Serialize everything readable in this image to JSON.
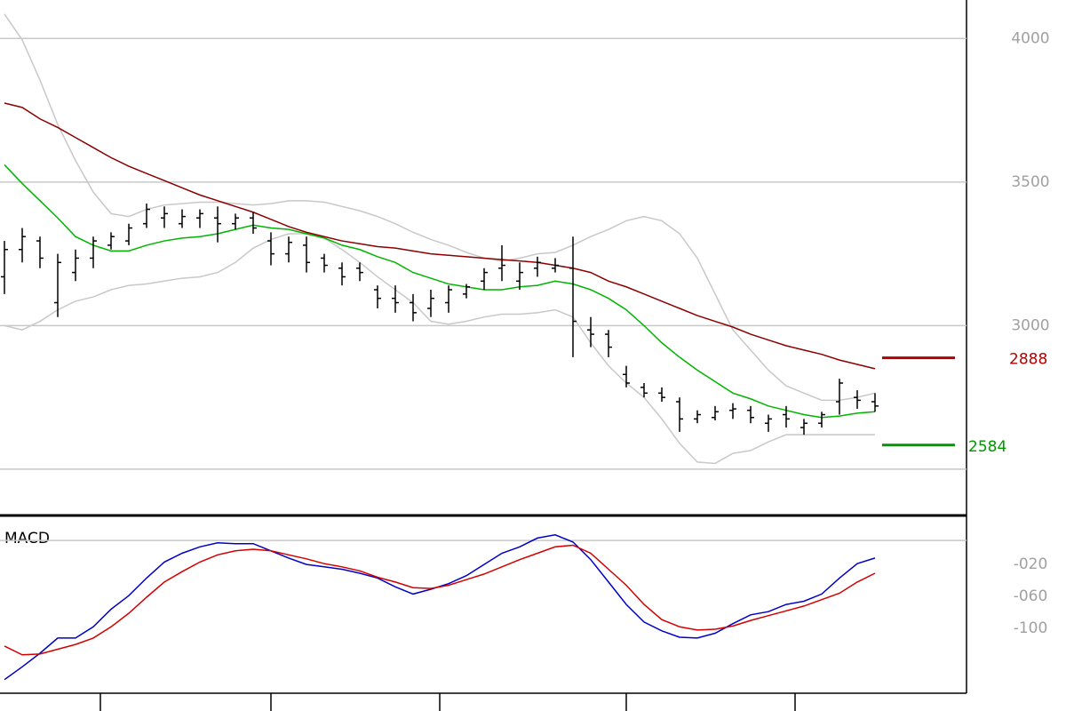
{
  "chart_data": [
    {
      "type": "ohlc",
      "open": [
        3170,
        3265,
        3295,
        3080,
        3185,
        3235,
        3280,
        3295,
        3355,
        3375,
        3355,
        3375,
        3375,
        3355,
        3375,
        3295,
        3250,
        3280,
        3235,
        3200,
        3200,
        3125,
        3095,
        3080,
        3060,
        3080,
        3110,
        3155,
        3200,
        3155,
        3200,
        3200,
        3200,
        2985,
        2970,
        2830,
        2785,
        2765,
        2735,
        2675,
        2680,
        2705,
        2705,
        2660,
        2690,
        2645,
        2660,
        2735,
        2750,
        2735
      ],
      "high": [
        3295,
        3340,
        3310,
        3250,
        3265,
        3310,
        3325,
        3355,
        3425,
        3415,
        3405,
        3405,
        3415,
        3390,
        3395,
        3325,
        3310,
        3310,
        3250,
        3220,
        3220,
        3140,
        3140,
        3110,
        3125,
        3140,
        3145,
        3200,
        3280,
        3220,
        3240,
        3235,
        3310,
        3030,
        2985,
        2860,
        2800,
        2785,
        2750,
        2705,
        2720,
        2730,
        2720,
        2690,
        2720,
        2675,
        2700,
        2815,
        2775,
        2765
      ],
      "low": [
        3110,
        3220,
        3200,
        3030,
        3155,
        3200,
        3265,
        3280,
        3340,
        3340,
        3340,
        3340,
        3290,
        3335,
        3320,
        3210,
        3220,
        3185,
        3185,
        3140,
        3155,
        3060,
        3045,
        3015,
        3030,
        3045,
        3095,
        3125,
        3155,
        3125,
        3170,
        3185,
        2890,
        2925,
        2890,
        2785,
        2750,
        2735,
        2630,
        2660,
        2670,
        2675,
        2660,
        2630,
        2645,
        2620,
        2645,
        2690,
        2710,
        2700
      ],
      "close": [
        3265,
        3310,
        3235,
        3220,
        3235,
        3295,
        3310,
        3340,
        3405,
        3390,
        3380,
        3390,
        3355,
        3375,
        3340,
        3250,
        3290,
        3220,
        3210,
        3170,
        3185,
        3095,
        3080,
        3045,
        3095,
        3125,
        3135,
        3185,
        3210,
        3185,
        3220,
        3210,
        3015,
        2970,
        2925,
        2800,
        2765,
        2750,
        2675,
        2690,
        2700,
        2710,
        2680,
        2675,
        2675,
        2660,
        2690,
        2800,
        2740,
        2720
      ],
      "bar_color": "#000000",
      "series": [
        {
          "color": "#c8c8c8",
          "values": [
            4085,
            3995,
            3855,
            3700,
            3575,
            3465,
            3390,
            3380,
            3405,
            3420,
            3425,
            3430,
            3430,
            3425,
            3420,
            3425,
            3435,
            3435,
            3430,
            3415,
            3400,
            3380,
            3355,
            3325,
            3300,
            3280,
            3255,
            3235,
            3225,
            3235,
            3250,
            3255,
            3280,
            3310,
            3335,
            3365,
            3380,
            3365,
            3320,
            3235,
            3110,
            2985,
            2915,
            2845,
            2790,
            2765,
            2740,
            2740,
            2750,
            2765
          ]
        },
        {
          "color": "#c8c8c8",
          "values": [
            3000,
            2985,
            3015,
            3055,
            3085,
            3100,
            3125,
            3140,
            3145,
            3155,
            3165,
            3170,
            3185,
            3220,
            3270,
            3300,
            3320,
            3320,
            3305,
            3265,
            3220,
            3170,
            3125,
            3080,
            3015,
            3005,
            3015,
            3030,
            3040,
            3040,
            3045,
            3055,
            3030,
            2940,
            2860,
            2800,
            2750,
            2675,
            2590,
            2525,
            2520,
            2555,
            2565,
            2595,
            2620,
            2620,
            2620,
            2620,
            2620,
            2620
          ]
        },
        {
          "color": "#8b0000",
          "values": [
            3775,
            3760,
            3720,
            3690,
            3655,
            3620,
            3585,
            3555,
            3530,
            3505,
            3480,
            3455,
            3435,
            3415,
            3395,
            3370,
            3345,
            3325,
            3310,
            3295,
            3285,
            3275,
            3270,
            3260,
            3250,
            3245,
            3240,
            3235,
            3230,
            3225,
            3220,
            3210,
            3200,
            3185,
            3155,
            3135,
            3110,
            3085,
            3060,
            3035,
            3015,
            2995,
            2970,
            2950,
            2930,
            2915,
            2900,
            2880,
            2865,
            2850
          ]
        },
        {
          "color": "#00b400",
          "values": [
            3560,
            3495,
            3435,
            3375,
            3310,
            3280,
            3260,
            3260,
            3280,
            3295,
            3305,
            3310,
            3320,
            3335,
            3350,
            3340,
            3335,
            3320,
            3305,
            3280,
            3265,
            3240,
            3220,
            3185,
            3165,
            3145,
            3135,
            3125,
            3125,
            3135,
            3140,
            3155,
            3145,
            3125,
            3095,
            3055,
            3000,
            2940,
            2890,
            2845,
            2805,
            2765,
            2745,
            2720,
            2705,
            2690,
            2680,
            2685,
            2695,
            2700
          ]
        }
      ],
      "ylim": [
        2345,
        4134
      ],
      "yticks": [
        3000,
        3500,
        4000
      ],
      "ygrid": [
        2500,
        3000,
        3500,
        4000
      ],
      "annotations": [
        {
          "value": 2888,
          "color": "#b40000"
        },
        {
          "value": 2584,
          "color": "#009600"
        }
      ]
    },
    {
      "type": "line",
      "title": "MACD",
      "series": [
        {
          "color": "#0000c8",
          "values": [
            -164,
            -148,
            -131,
            -112,
            -112,
            -98,
            -76,
            -59,
            -37,
            -17,
            -6,
            2,
            7,
            6,
            6,
            -3,
            -12,
            -20,
            -23,
            -26,
            -31,
            -37,
            -48,
            -57,
            -51,
            -44,
            -34,
            -20,
            -6,
            2,
            13,
            17,
            8,
            -14,
            -42,
            -70,
            -92,
            -103,
            -111,
            -112,
            -106,
            -94,
            -83,
            -79,
            -70,
            -66,
            -57,
            -37,
            -19,
            -12
          ]
        },
        {
          "color": "#d20000",
          "values": [
            -122,
            -133,
            -132,
            -126,
            -120,
            -112,
            -98,
            -81,
            -61,
            -42,
            -29,
            -17,
            -8,
            -3,
            -1,
            -3,
            -8,
            -13,
            -19,
            -23,
            -28,
            -36,
            -42,
            -49,
            -50,
            -46,
            -39,
            -32,
            -23,
            -14,
            -6,
            2,
            4,
            -6,
            -26,
            -46,
            -70,
            -89,
            -98,
            -102,
            -101,
            -97,
            -90,
            -84,
            -78,
            -72,
            -64,
            -56,
            -42,
            -31
          ]
        }
      ],
      "ylim": [
        -181,
        39
      ],
      "yticks": [
        {
          "value": -20,
          "label": "-020"
        },
        {
          "value": -60,
          "label": "-060"
        },
        -100
      ],
      "ygrid": [
        10
      ],
      "xticks": [
        5.4,
        15,
        24.5,
        35,
        44.5
      ]
    }
  ]
}
